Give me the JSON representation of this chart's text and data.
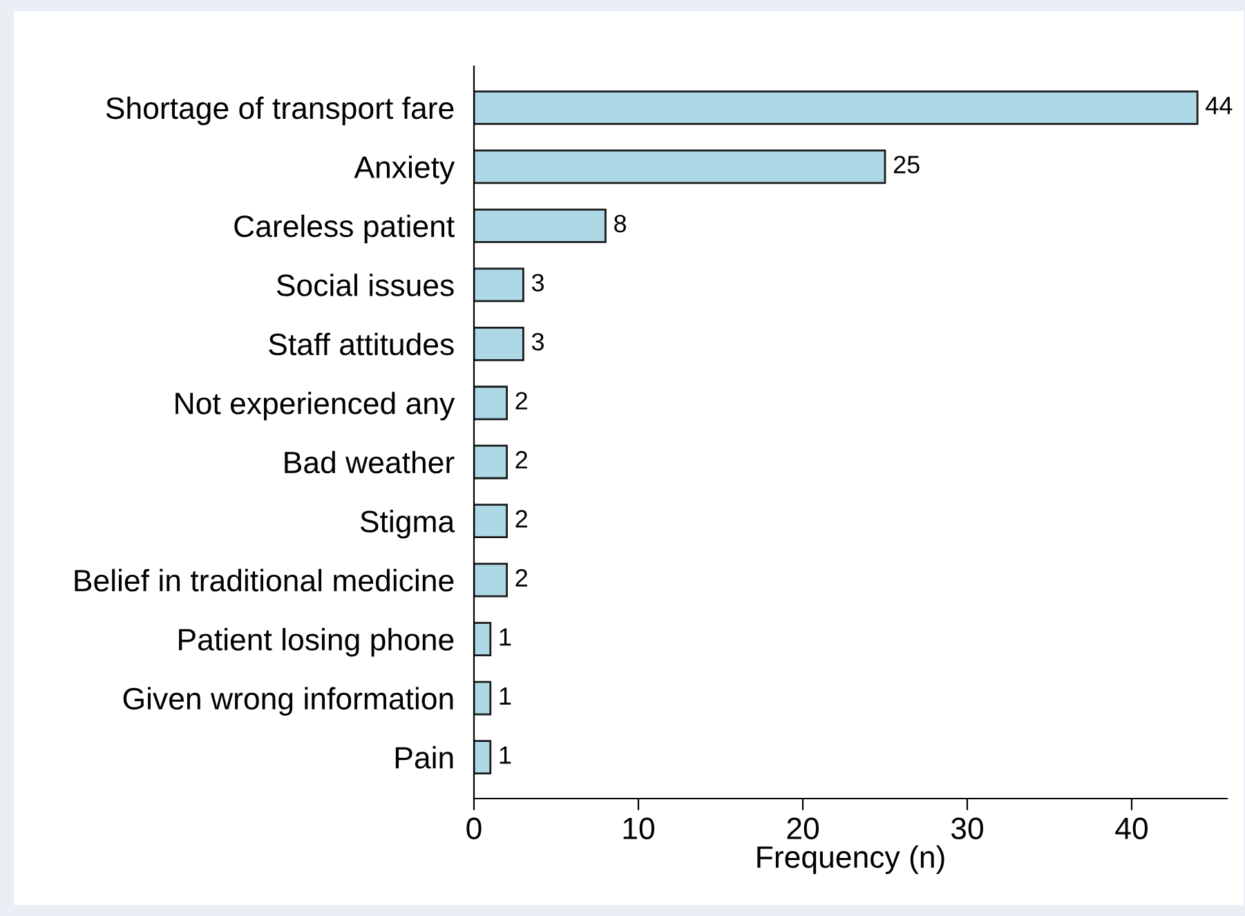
{
  "chart_data": {
    "type": "bar",
    "orientation": "horizontal",
    "xlabel": "Frequency (n)",
    "categories": [
      "Shortage of transport fare",
      "Anxiety",
      "Careless patient",
      "Social issues",
      "Staff attitudes",
      "Not experienced any",
      "Bad weather",
      "Stigma",
      "Belief in traditional medicine",
      "Patient losing phone",
      "Given wrong information",
      "Pain"
    ],
    "values": [
      44,
      25,
      8,
      3,
      3,
      2,
      2,
      2,
      2,
      1,
      1,
      1
    ],
    "color": "#add8e6",
    "xlim": [
      0,
      45.8
    ],
    "xticks": [
      0,
      10,
      20,
      30,
      40
    ],
    "grid": false,
    "data_labels": true
  }
}
